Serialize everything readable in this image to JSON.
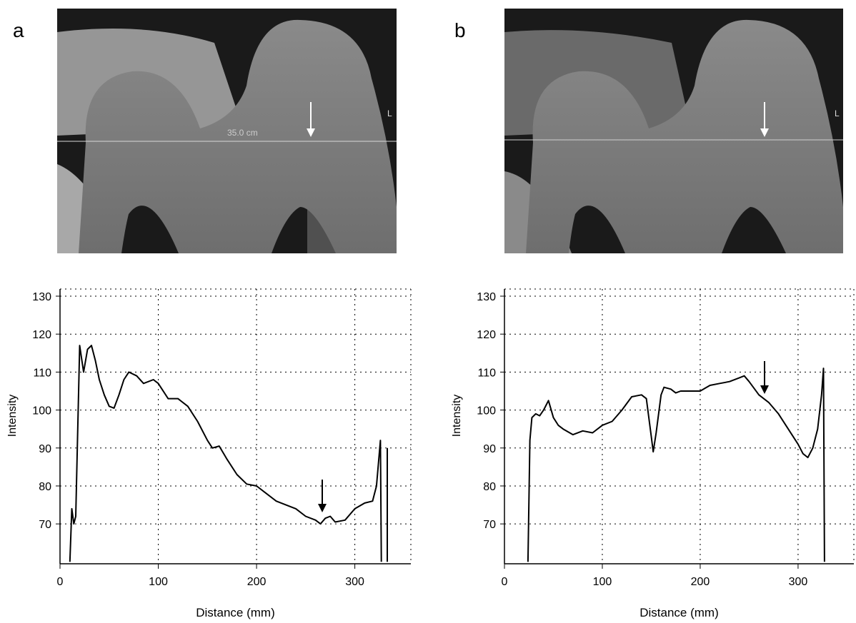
{
  "panel_labels": [
    "a",
    "b"
  ],
  "image_annotations": {
    "a_line_label": "35.0 cm",
    "a_side_mark": "L",
    "b_side_mark": "L"
  },
  "chart_data": [
    {
      "type": "line",
      "x_label": "Distance (mm)",
      "y_label": "Intensity",
      "color": "#000000",
      "grid": true,
      "xlim": [
        0,
        357
      ],
      "ylim": [
        59.5,
        130
      ],
      "xticks": [
        0,
        100,
        200,
        300
      ],
      "yticks": [
        70,
        80,
        90,
        100,
        110,
        120,
        130
      ],
      "x": [
        10,
        12,
        14,
        16,
        20,
        24,
        28,
        32,
        36,
        40,
        45,
        50,
        55,
        60,
        65,
        70,
        78,
        85,
        95,
        100,
        110,
        120,
        130,
        140,
        150,
        155,
        162,
        170,
        180,
        190,
        200,
        210,
        220,
        230,
        240,
        250,
        260,
        265,
        270,
        275,
        280,
        290,
        300,
        310,
        318,
        322,
        326,
        327,
        null,
        333,
        333
      ],
      "values": [
        60,
        74,
        70,
        72,
        117,
        110,
        116,
        117,
        113,
        108,
        104,
        101,
        100.5,
        104,
        108,
        110,
        109,
        107,
        108,
        107,
        103,
        103,
        101,
        97,
        92,
        90,
        90.5,
        87,
        83,
        80.5,
        80,
        78,
        76,
        75,
        74,
        72,
        71,
        70,
        71.5,
        72,
        70.5,
        71,
        74,
        75.5,
        76,
        80,
        92,
        60,
        null,
        60,
        90
      ]
    },
    {
      "type": "line",
      "x_label": "Distance (mm)",
      "y_label": "Intensity",
      "color": "#000000",
      "grid": true,
      "xlim": [
        0,
        357
      ],
      "ylim": [
        59.5,
        130
      ],
      "xticks": [
        0,
        100,
        200,
        300
      ],
      "yticks": [
        70,
        80,
        90,
        100,
        110,
        120,
        130
      ],
      "x": [
        24,
        26,
        28,
        32,
        36,
        40,
        45,
        50,
        55,
        60,
        70,
        80,
        90,
        100,
        110,
        120,
        130,
        140,
        145,
        150,
        152,
        155,
        160,
        163,
        170,
        175,
        180,
        200,
        210,
        220,
        230,
        240,
        245,
        250,
        260,
        270,
        280,
        290,
        300,
        305,
        310,
        315,
        320,
        324,
        326,
        327
      ],
      "values": [
        60,
        92,
        98,
        99,
        98.5,
        100,
        102.5,
        98,
        96,
        95,
        93.5,
        94.5,
        94,
        96,
        97,
        100,
        103.5,
        104,
        103,
        93,
        89,
        94,
        104,
        106,
        105.5,
        104.5,
        105,
        105,
        106.5,
        107,
        107.5,
        108.5,
        109,
        107.5,
        104,
        102,
        99,
        95,
        91,
        88.5,
        87.5,
        90,
        95,
        104,
        111,
        60
      ]
    }
  ]
}
